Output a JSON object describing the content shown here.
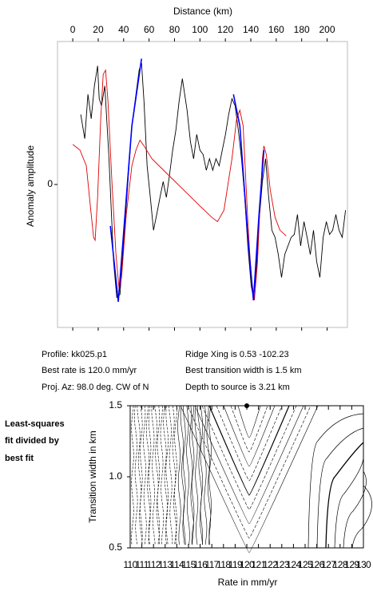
{
  "chart_data": [
    {
      "type": "line",
      "xlabel": "Distance (km)",
      "ylabel": "Anomaly amplitude",
      "xlim": [
        -12,
        216
      ],
      "xticks": [
        0,
        20,
        40,
        60,
        80,
        100,
        120,
        140,
        160,
        180,
        200
      ],
      "ylim": [
        -1,
        1
      ],
      "yticks": [
        0
      ],
      "series": [
        {
          "color": "#000000",
          "x": [
            6.3,
            9.4,
            11.9,
            14.5,
            17.0,
            19.5,
            20.8,
            22.6,
            25.2,
            28.3,
            32.1,
            34.6,
            37.1,
            40.3,
            43.4,
            46.5,
            49.7,
            52.2,
            54.1,
            56.0,
            58.5,
            61.0,
            63.5,
            66.0,
            68.6,
            71.1,
            73.6,
            76.1,
            78.6,
            81.1,
            83.6,
            86.2,
            89.9,
            92.5,
            95.0,
            97.5,
            100.0,
            102.5,
            105.0,
            107.5,
            110.1,
            112.6,
            115.1,
            117.6,
            120.1,
            122.6,
            125.2,
            127.7,
            130.2,
            132.7,
            135.2,
            137.7,
            140.3,
            142.1,
            144.0,
            146.5,
            149.1,
            151.6,
            154.1,
            156.6,
            159.1,
            161.6,
            164.2,
            166.7,
            169.2,
            171.7,
            174.2,
            176.7,
            179.2,
            181.8,
            184.3,
            186.8,
            189.3,
            191.8,
            194.3,
            196.9,
            199.4,
            201.9,
            204.4,
            206.9,
            209.4,
            211.9,
            214.5
          ],
          "values": [
            0.49,
            0.32,
            0.63,
            0.46,
            0.69,
            0.83,
            0.6,
            0.55,
            0.69,
            0.21,
            -0.54,
            -0.79,
            -0.77,
            -0.37,
            0.02,
            0.41,
            0.63,
            0.8,
            0.85,
            0.58,
            0.13,
            -0.09,
            -0.32,
            -0.21,
            -0.09,
            0.02,
            -0.09,
            0.07,
            0.24,
            0.38,
            0.58,
            0.74,
            0.52,
            0.3,
            0.18,
            0.35,
            0.24,
            0.21,
            0.1,
            0.18,
            0.1,
            0.18,
            0.13,
            0.24,
            0.35,
            0.49,
            0.6,
            0.55,
            0.38,
            0.18,
            -0.09,
            -0.43,
            -0.71,
            -0.79,
            -0.65,
            -0.26,
            0.02,
            0.18,
            -0.09,
            -0.32,
            -0.37,
            -0.49,
            -0.65,
            -0.49,
            -0.43,
            -0.37,
            -0.35,
            -0.21,
            -0.43,
            -0.26,
            -0.37,
            -0.49,
            -0.32,
            -0.54,
            -0.65,
            -0.37,
            -0.26,
            -0.35,
            -0.32,
            -0.21,
            -0.32,
            -0.37,
            -0.18
          ]
        },
        {
          "color": "#e00000",
          "x": [
            0.0,
            5.7,
            10.7,
            13.8,
            16.4,
            17.6,
            19.5,
            22.0,
            23.9,
            25.8,
            27.7,
            30.8,
            34.0,
            36.5,
            38.4,
            42.1,
            46.5,
            49.7,
            52.8,
            56.0,
            62.3,
            74.8,
            87.4,
            100.0,
            109.4,
            113.8,
            118.9,
            125.2,
            128.9,
            131.4,
            134.0,
            137.7,
            140.3,
            142.8,
            145.3,
            147.2,
            149.1,
            150.3,
            152.2,
            155.3,
            159.1,
            162.9,
            167.9
          ],
          "values": [
            0.28,
            0.24,
            0.13,
            -0.15,
            -0.37,
            -0.39,
            -0.09,
            0.46,
            0.77,
            0.8,
            0.58,
            0.02,
            -0.49,
            -0.74,
            -0.65,
            -0.21,
            0.13,
            0.24,
            0.31,
            0.27,
            0.18,
            0.07,
            -0.04,
            -0.15,
            -0.23,
            -0.26,
            -0.18,
            0.18,
            0.46,
            0.52,
            0.41,
            -0.26,
            -0.65,
            -0.81,
            -0.54,
            -0.15,
            0.18,
            0.27,
            0.21,
            -0.04,
            -0.23,
            -0.32,
            -0.36
          ]
        },
        {
          "color": "#0000ff",
          "x": [
            29.6,
            35.8,
            46.5,
            54.1,
            null,
            126.4,
            131.4,
            137.7,
            142.1,
            146.5,
            150.3
          ],
          "values": [
            -0.29,
            -0.82,
            0.41,
            0.88,
            null,
            0.63,
            0.41,
            -0.37,
            -0.81,
            -0.21,
            0.24
          ]
        }
      ]
    },
    {
      "type": "scatter",
      "xlabel": "Rate in mm/yr",
      "ylabel": "Transition width in km",
      "xlim": [
        110,
        130
      ],
      "xticks": [
        110,
        111,
        112,
        113,
        114,
        115,
        116,
        117,
        118,
        119,
        120,
        121,
        122,
        123,
        124,
        125,
        126,
        127,
        128,
        129,
        130
      ],
      "ylim": [
        0.5,
        1.5
      ],
      "yticks": [
        0.5,
        {
          "value": 1,
          "label": "1.0"
        },
        1.5
      ],
      "color": "#000000",
      "x": [
        120
      ],
      "values": [
        1.5
      ]
    }
  ],
  "profile_info": {
    "left": [
      "Profile: kk025.p1",
      "Best rate is 120.0 mm/yr",
      "Proj. Az: 98.0 deg. CW of N"
    ],
    "right": [
      "Ridge Xing is 0.53 -102.23",
      "Best transition width is 1.5 km",
      "Depth to source is   3.21 km"
    ]
  },
  "side_note": [
    "Least-squares",
    "fit divided by",
    "best fit"
  ]
}
